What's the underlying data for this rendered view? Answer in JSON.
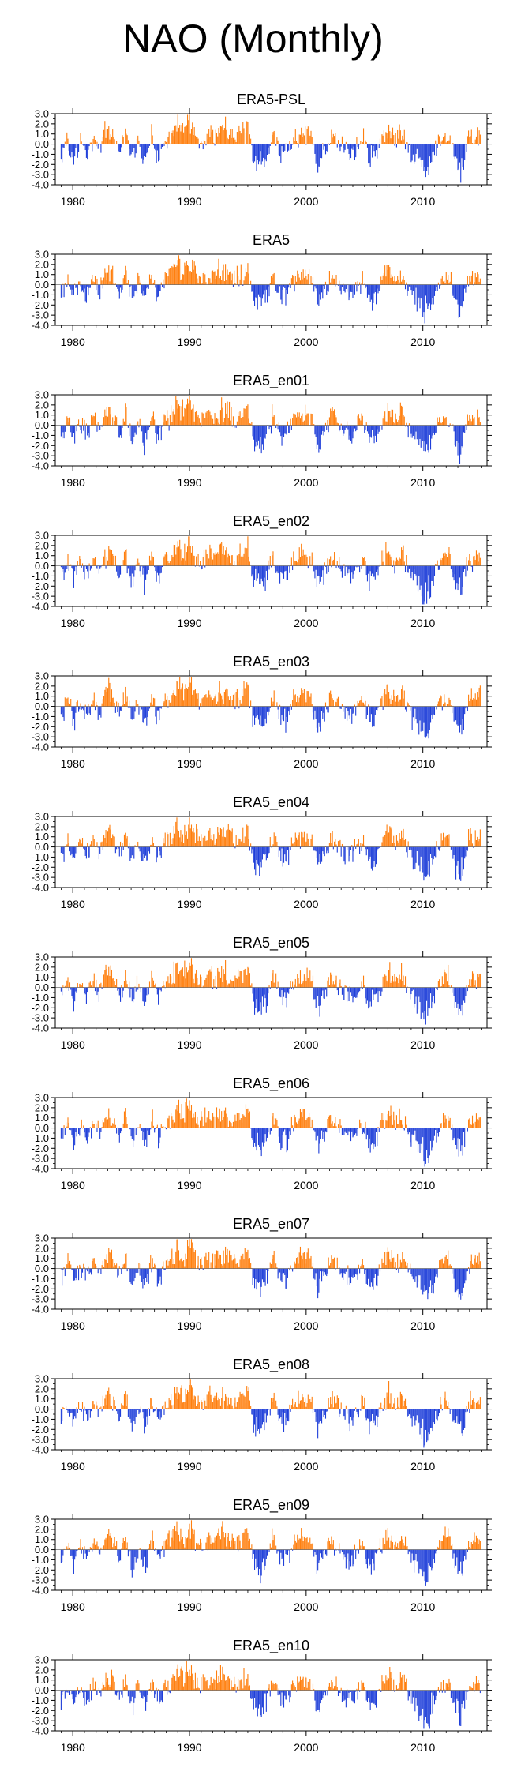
{
  "title": "NAO (Monthly)",
  "colors": {
    "positive": "#ff7f0e",
    "negative": "#1f3fd9",
    "axis": "#000000"
  },
  "chart_data": {
    "type": "bar",
    "x_range": [
      1978.5,
      2015.5
    ],
    "ylim": [
      -4.0,
      3.0
    ],
    "yticks": [
      "3.0",
      "2.0",
      "1.0",
      "0.0",
      "-1.0",
      "-2.0",
      "-3.0",
      "-4.0"
    ],
    "xticks": [
      "1980",
      "1990",
      "2000",
      "2010"
    ],
    "series_profile": [
      {
        "x": 1979.0,
        "y": -1.3
      },
      {
        "x": 1979.6,
        "y": 0.6
      },
      {
        "x": 1980.1,
        "y": -1.5
      },
      {
        "x": 1980.6,
        "y": 0.3
      },
      {
        "x": 1981.2,
        "y": -1.0
      },
      {
        "x": 1981.8,
        "y": 0.8
      },
      {
        "x": 1982.3,
        "y": -0.7
      },
      {
        "x": 1982.9,
        "y": 1.8
      },
      {
        "x": 1983.4,
        "y": 1.2
      },
      {
        "x": 1984.0,
        "y": -1.2
      },
      {
        "x": 1984.5,
        "y": 1.4
      },
      {
        "x": 1985.1,
        "y": -1.8
      },
      {
        "x": 1985.6,
        "y": 0.5
      },
      {
        "x": 1986.2,
        "y": -2.0
      },
      {
        "x": 1986.8,
        "y": 1.2
      },
      {
        "x": 1987.3,
        "y": -1.4
      },
      {
        "x": 1987.9,
        "y": 0.7
      },
      {
        "x": 1988.4,
        "y": 0.9
      },
      {
        "x": 1989.0,
        "y": 2.5
      },
      {
        "x": 1989.5,
        "y": 1.4
      },
      {
        "x": 1990.0,
        "y": 2.8
      },
      {
        "x": 1990.6,
        "y": 1.0
      },
      {
        "x": 1991.1,
        "y": 0.5
      },
      {
        "x": 1991.7,
        "y": 1.5
      },
      {
        "x": 1992.2,
        "y": 1.0
      },
      {
        "x": 1992.8,
        "y": 1.9
      },
      {
        "x": 1993.3,
        "y": 1.3
      },
      {
        "x": 1993.9,
        "y": 0.7
      },
      {
        "x": 1994.4,
        "y": 1.2
      },
      {
        "x": 1995.0,
        "y": 1.8
      },
      {
        "x": 1995.5,
        "y": -1.6
      },
      {
        "x": 1996.1,
        "y": -2.4
      },
      {
        "x": 1996.6,
        "y": -1.3
      },
      {
        "x": 1997.2,
        "y": 1.4
      },
      {
        "x": 1997.7,
        "y": -0.8
      },
      {
        "x": 1998.3,
        "y": -1.5
      },
      {
        "x": 1998.8,
        "y": 0.4
      },
      {
        "x": 1999.4,
        "y": 1.2
      },
      {
        "x": 1999.9,
        "y": 1.4
      },
      {
        "x": 2000.5,
        "y": 0.8
      },
      {
        "x": 2001.0,
        "y": -2.3
      },
      {
        "x": 2001.6,
        "y": -0.6
      },
      {
        "x": 2002.1,
        "y": 0.9
      },
      {
        "x": 2002.7,
        "y": 0.4
      },
      {
        "x": 2003.2,
        "y": -0.7
      },
      {
        "x": 2003.8,
        "y": -1.2
      },
      {
        "x": 2004.3,
        "y": -0.3
      },
      {
        "x": 2004.9,
        "y": 0.7
      },
      {
        "x": 2005.4,
        "y": -1.8
      },
      {
        "x": 2006.0,
        "y": -1.3
      },
      {
        "x": 2006.5,
        "y": 0.6
      },
      {
        "x": 2007.1,
        "y": 1.8
      },
      {
        "x": 2007.6,
        "y": 0.5
      },
      {
        "x": 2008.2,
        "y": 1.6
      },
      {
        "x": 2008.7,
        "y": -0.4
      },
      {
        "x": 2009.3,
        "y": -1.5
      },
      {
        "x": 2009.8,
        "y": -2.0
      },
      {
        "x": 2010.2,
        "y": -3.5
      },
      {
        "x": 2010.6,
        "y": -2.5
      },
      {
        "x": 2011.1,
        "y": -0.6
      },
      {
        "x": 2011.7,
        "y": 1.0
      },
      {
        "x": 2012.2,
        "y": 1.3
      },
      {
        "x": 2012.8,
        "y": -1.9
      },
      {
        "x": 2013.3,
        "y": -3.1
      },
      {
        "x": 2013.9,
        "y": 0.8
      },
      {
        "x": 2014.4,
        "y": 0.7
      },
      {
        "x": 2015.0,
        "y": 1.5
      }
    ],
    "panels": [
      {
        "title": "ERA5-PSL"
      },
      {
        "title": "ERA5"
      },
      {
        "title": "ERA5_en01"
      },
      {
        "title": "ERA5_en02"
      },
      {
        "title": "ERA5_en03"
      },
      {
        "title": "ERA5_en04"
      },
      {
        "title": "ERA5_en05"
      },
      {
        "title": "ERA5_en06"
      },
      {
        "title": "ERA5_en07"
      },
      {
        "title": "ERA5_en08"
      },
      {
        "title": "ERA5_en09"
      },
      {
        "title": "ERA5_en10"
      }
    ]
  }
}
